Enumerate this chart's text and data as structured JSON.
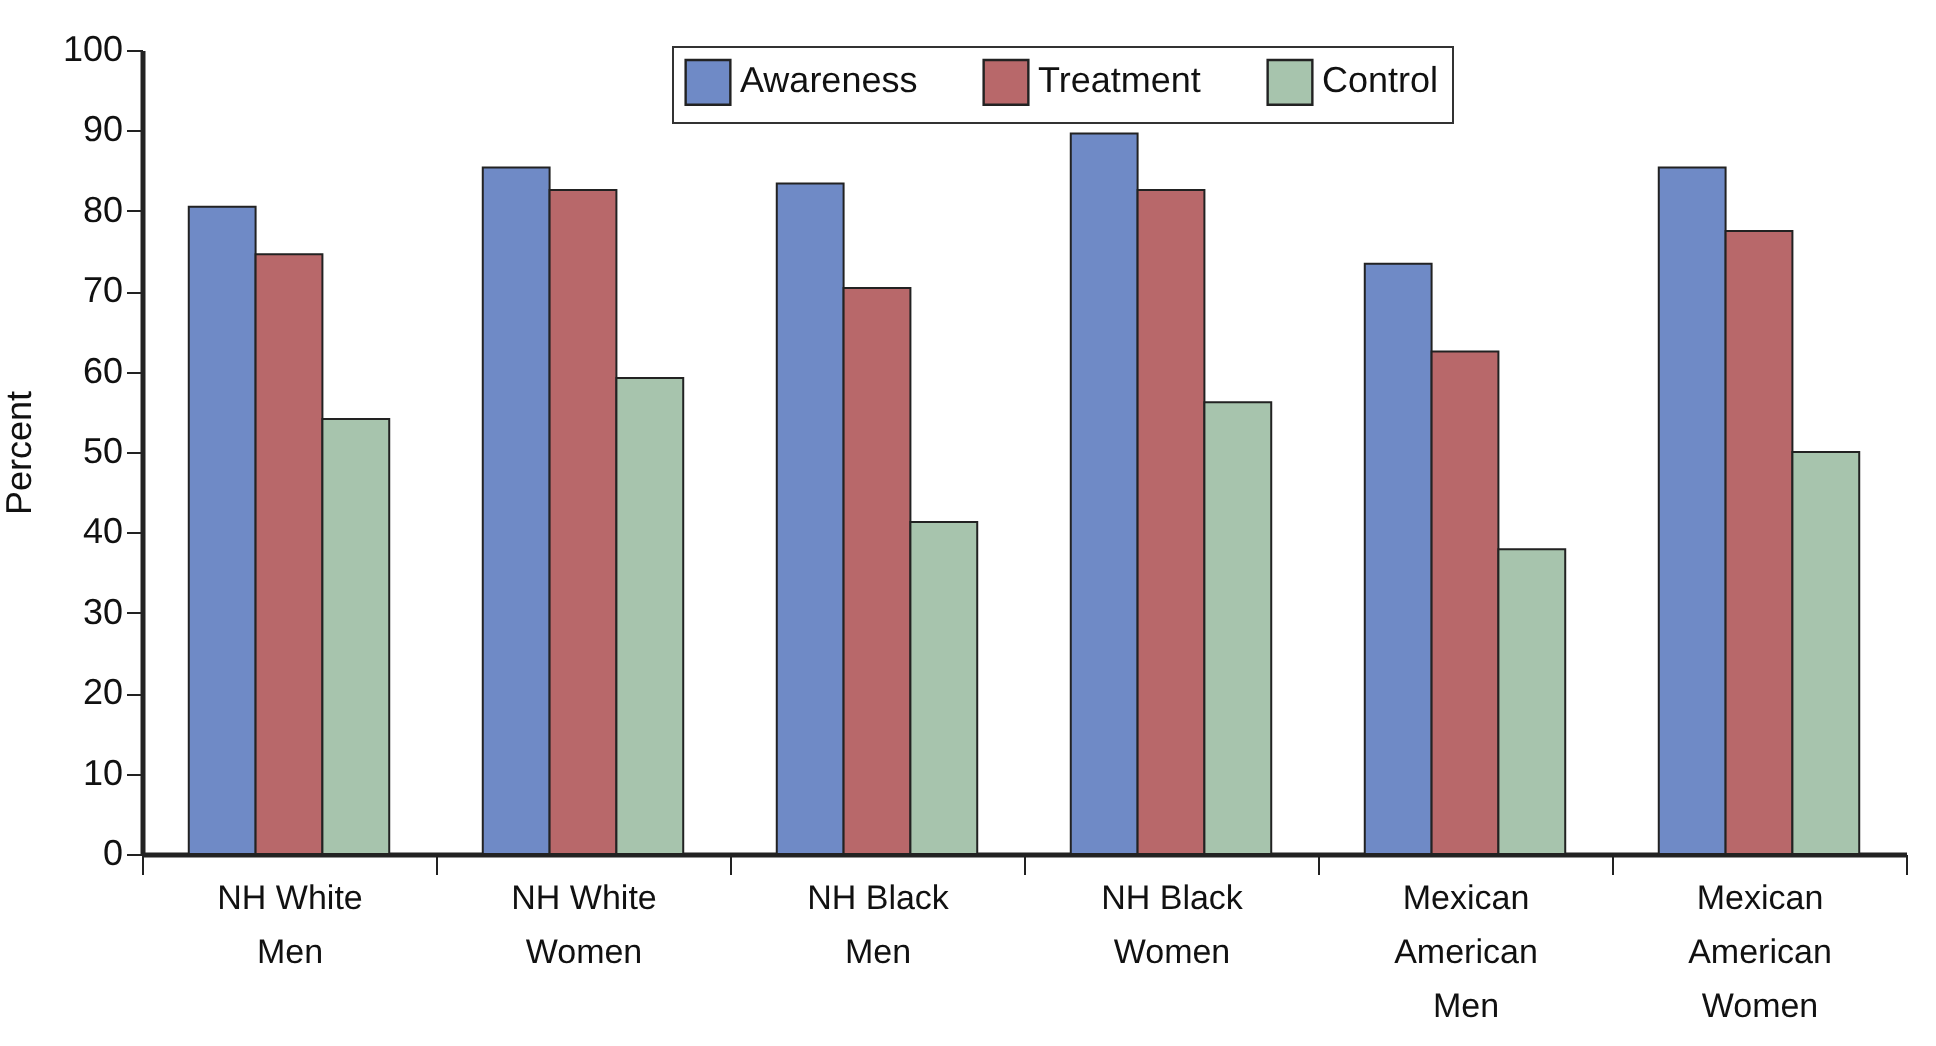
{
  "chart_data": {
    "type": "bar",
    "ylabel": "Percent",
    "categories": [
      "NH White Men",
      "NH White Women",
      "NH Black Men",
      "NH Black Women",
      "Mexican American Men",
      "Mexican American Women"
    ],
    "series": [
      {
        "name": "Awareness",
        "color": "#6f8ac6",
        "values": [
          80.5,
          85.4,
          83.4,
          89.6,
          73.4,
          85.4
        ]
      },
      {
        "name": "Treatment",
        "color": "#b8686a",
        "values": [
          74.6,
          82.6,
          70.4,
          82.6,
          62.5,
          77.5
        ]
      },
      {
        "name": "Control",
        "color": "#a7c4ad",
        "values": [
          54.1,
          59.2,
          41.3,
          56.2,
          37.9,
          50.0
        ]
      }
    ],
    "ylim": [
      0,
      100
    ],
    "yticks": [
      0,
      10,
      20,
      30,
      40,
      50,
      60,
      70,
      80,
      90,
      100
    ],
    "grid": false,
    "legend": "top"
  }
}
